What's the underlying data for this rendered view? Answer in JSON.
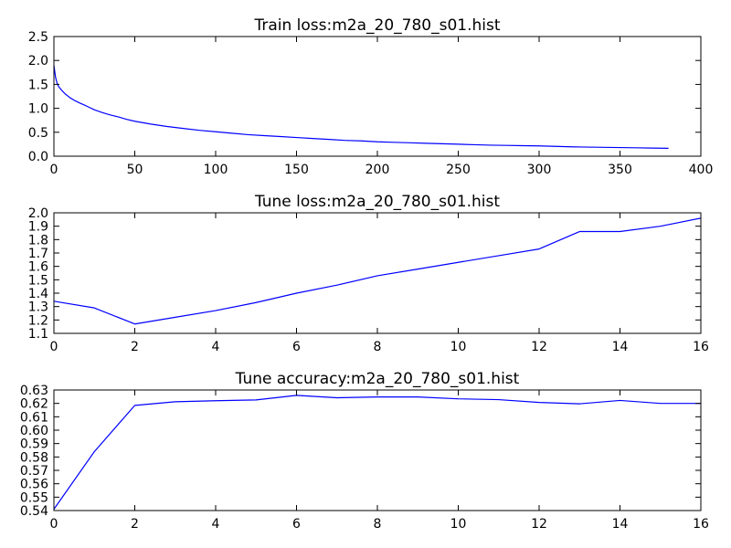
{
  "chart_data": [
    {
      "type": "line",
      "title": "Train loss:m2a_20_780_s01.hist",
      "xlabel": "",
      "ylabel": "",
      "xlim": [
        0,
        400
      ],
      "ylim": [
        0.0,
        2.5
      ],
      "xticks": [
        "0",
        "50",
        "100",
        "150",
        "200",
        "250",
        "300",
        "350",
        "400"
      ],
      "yticks": [
        "0.0",
        "0.5",
        "1.0",
        "1.5",
        "2.0",
        "2.5"
      ],
      "grid": false,
      "series": [
        {
          "color": "#0000ff",
          "x": [
            0,
            1,
            2,
            3,
            5,
            7,
            10,
            13,
            16,
            20,
            25,
            30,
            35,
            40,
            45,
            50,
            60,
            70,
            80,
            90,
            100,
            110,
            120,
            130,
            140,
            150,
            160,
            170,
            180,
            190,
            200,
            210,
            220,
            230,
            240,
            250,
            260,
            270,
            280,
            290,
            300,
            310,
            320,
            330,
            340,
            350,
            360,
            370,
            380
          ],
          "y": [
            1.9,
            1.65,
            1.52,
            1.45,
            1.37,
            1.3,
            1.22,
            1.16,
            1.11,
            1.05,
            0.97,
            0.91,
            0.86,
            0.82,
            0.77,
            0.73,
            0.67,
            0.62,
            0.58,
            0.54,
            0.51,
            0.48,
            0.45,
            0.43,
            0.41,
            0.39,
            0.37,
            0.35,
            0.33,
            0.32,
            0.3,
            0.29,
            0.28,
            0.27,
            0.26,
            0.25,
            0.24,
            0.23,
            0.225,
            0.22,
            0.215,
            0.205,
            0.195,
            0.19,
            0.185,
            0.18,
            0.175,
            0.17,
            0.165
          ]
        }
      ]
    },
    {
      "type": "line",
      "title": "Tune loss:m2a_20_780_s01.hist",
      "xlabel": "",
      "ylabel": "",
      "xlim": [
        0,
        16
      ],
      "ylim": [
        1.1,
        2.0
      ],
      "xticks": [
        "0",
        "2",
        "4",
        "6",
        "8",
        "10",
        "12",
        "14",
        "16"
      ],
      "yticks": [
        "1.1",
        "1.2",
        "1.3",
        "1.4",
        "1.5",
        "1.6",
        "1.7",
        "1.8",
        "1.9",
        "2.0"
      ],
      "grid": false,
      "series": [
        {
          "color": "#0000ff",
          "x": [
            0,
            1,
            2,
            3,
            4,
            5,
            6,
            7,
            8,
            9,
            10,
            11,
            12,
            13,
            14,
            15,
            16
          ],
          "y": [
            1.34,
            1.29,
            1.17,
            1.22,
            1.27,
            1.33,
            1.4,
            1.46,
            1.53,
            1.58,
            1.63,
            1.68,
            1.73,
            1.86,
            1.86,
            1.9,
            1.96
          ]
        }
      ]
    },
    {
      "type": "line",
      "title": "Tune accuracy:m2a_20_780_s01.hist",
      "xlabel": "",
      "ylabel": "",
      "xlim": [
        0,
        16
      ],
      "ylim": [
        0.54,
        0.63
      ],
      "xticks": [
        "0",
        "2",
        "4",
        "6",
        "8",
        "10",
        "12",
        "14",
        "16"
      ],
      "yticks": [
        "0.54",
        "0.55",
        "0.56",
        "0.57",
        "0.58",
        "0.59",
        "0.60",
        "0.61",
        "0.62",
        "0.63"
      ],
      "grid": false,
      "series": [
        {
          "color": "#0000ff",
          "x": [
            0,
            1,
            2,
            3,
            4,
            5,
            6,
            7,
            8,
            9,
            10,
            11,
            12,
            13,
            14,
            15,
            16
          ],
          "y": [
            0.541,
            0.584,
            0.6185,
            0.6212,
            0.622,
            0.6226,
            0.626,
            0.6242,
            0.6248,
            0.6248,
            0.6234,
            0.6228,
            0.6207,
            0.6197,
            0.6222,
            0.62,
            0.62
          ]
        }
      ]
    }
  ]
}
